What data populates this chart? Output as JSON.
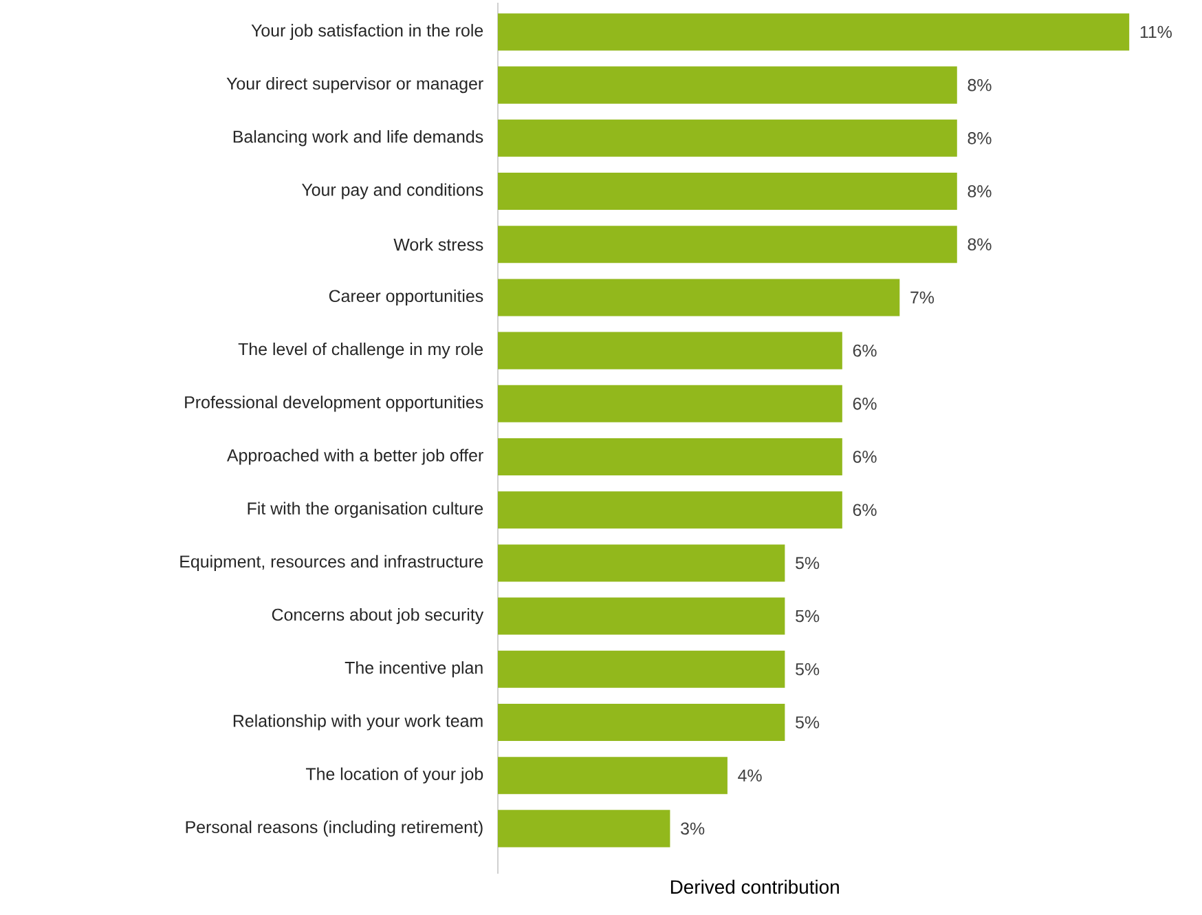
{
  "chart_data": {
    "type": "bar",
    "orientation": "horizontal",
    "xlabel": "Derived contribution",
    "color": "#92b81c",
    "categories": [
      "Your job satisfaction in the role",
      "Your direct supervisor or manager",
      "Balancing work and life demands",
      "Your pay and conditions",
      "Work stress",
      "Career opportunities",
      "The level of challenge in my role",
      "Professional development opportunities",
      "Approached with a better job offer",
      "Fit with the organisation culture",
      "Equipment, resources and infrastructure",
      "Concerns about job security",
      "The incentive plan",
      "Relationship with your work team",
      "The location of your job",
      "Personal reasons (including retirement)"
    ],
    "values": [
      11,
      8,
      8,
      8,
      8,
      7,
      6,
      6,
      6,
      6,
      5,
      5,
      5,
      5,
      4,
      3
    ],
    "value_labels": [
      "11%",
      "8%",
      "8%",
      "8%",
      "8%",
      "7%",
      "6%",
      "6%",
      "6%",
      "6%",
      "5%",
      "5%",
      "5%",
      "5%",
      "4%",
      "3%"
    ]
  }
}
